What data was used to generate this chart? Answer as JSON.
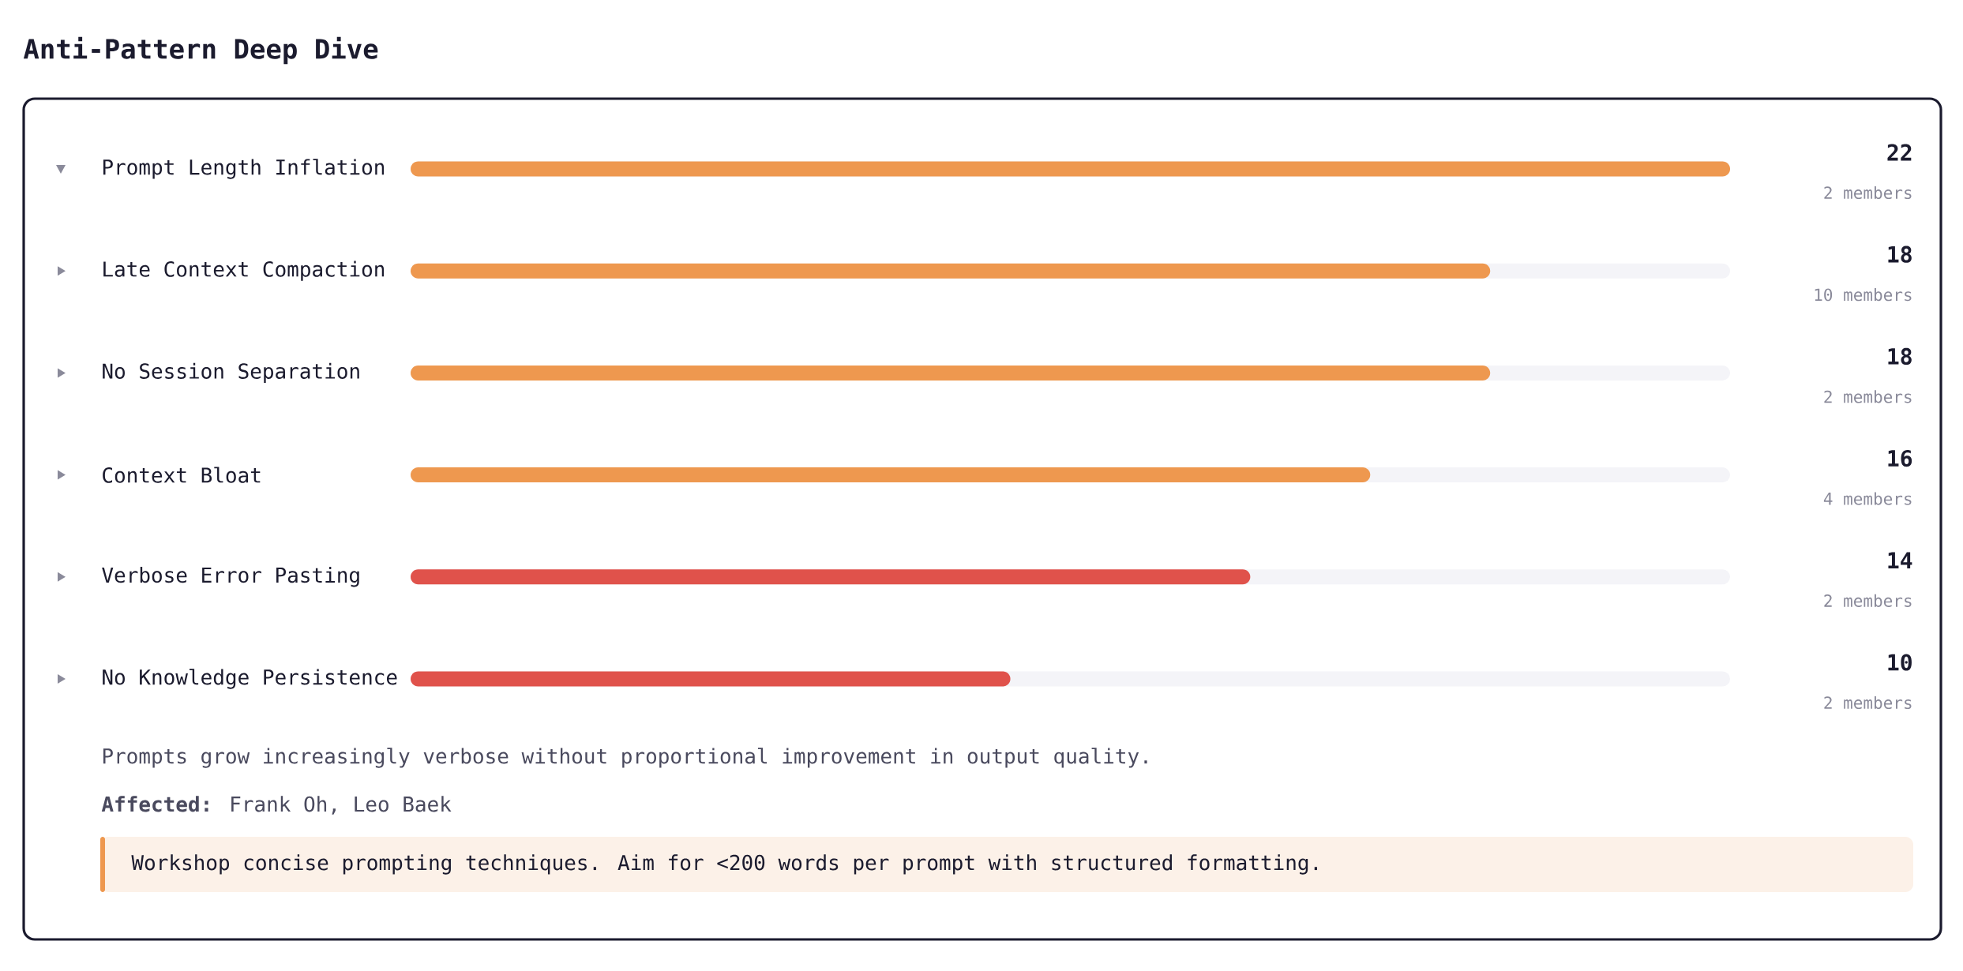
{
  "chart_data": {
    "type": "bar",
    "orientation": "horizontal",
    "title": "Anti-Pattern Deep Dive",
    "categories": [
      "Prompt Length Inflation",
      "Late Context Compaction",
      "No Session Separation",
      "Context Bloat",
      "Verbose Error Pasting",
      "No Knowledge Persistence"
    ],
    "values": [
      22,
      18,
      18,
      16,
      14,
      10
    ],
    "colors": [
      "#ee984f",
      "#ee984f",
      "#ee984f",
      "#ee984f",
      "#e0524b",
      "#e0524b"
    ],
    "data_labels": true,
    "annotations": [
      "Prompts grow increasingly verbose without proportional improvement in output quality.",
      "**Affected:** Frank Oh, Leo Baek",
      "Workshop concise prompting techniques. Aim for <200 words per prompt with structured formatting.",
      "2 members",
      "10 members",
      "2 members",
      "4 members",
      "2 members",
      "2 members"
    ]
  }
}
